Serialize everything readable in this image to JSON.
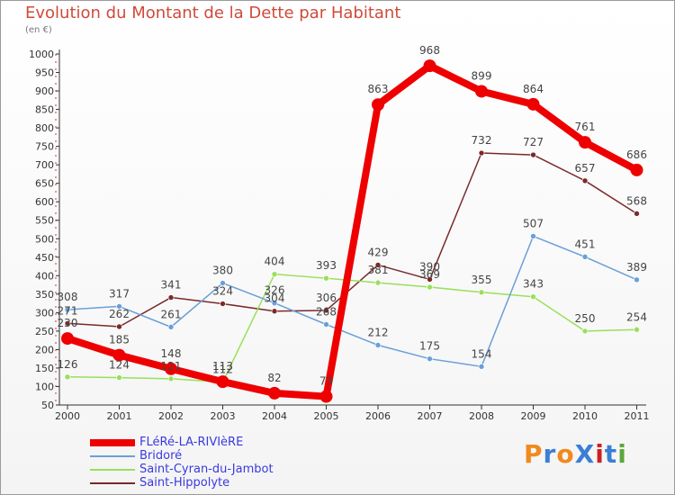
{
  "chart_data": {
    "type": "line",
    "title": "Evolution du Montant de la Dette par Habitant",
    "subtitle": "(en €)",
    "categories": [
      "2000",
      "2001",
      "2002",
      "2003",
      "2004",
      "2005",
      "2006",
      "2007",
      "2008",
      "2009",
      "2010",
      "2011"
    ],
    "yticks": [
      "50",
      "100",
      "150",
      "200",
      "250",
      "300",
      "350",
      "400",
      "450",
      "500",
      "550",
      "600",
      "650",
      "700",
      "750",
      "800",
      "850",
      "900",
      "950",
      "1000"
    ],
    "ylim": [
      50,
      1000
    ],
    "grid": false,
    "legend_position": "bottom-left",
    "series": [
      {
        "name": "FLéRé-LA-RIVIèRE",
        "color": "#ee0000",
        "width": 8,
        "values": [
          230,
          185,
          148,
          113,
          82,
          73,
          863,
          968,
          899,
          864,
          761,
          686
        ]
      },
      {
        "name": "Bridoré",
        "color": "#6a9fd8",
        "width": 1.5,
        "values": [
          308,
          317,
          261,
          380,
          326,
          268,
          212,
          175,
          154,
          507,
          451,
          389
        ]
      },
      {
        "name": "Saint-Cyran-du-Jambot",
        "color": "#99e05a",
        "width": 1.5,
        "values": [
          126,
          124,
          121,
          112,
          404,
          393,
          381,
          369,
          355,
          343,
          250,
          254
        ]
      },
      {
        "name": "Saint-Hippolyte",
        "color": "#7a2a2a",
        "width": 1.5,
        "values": [
          271,
          262,
          341,
          324,
          304,
          306,
          429,
          390,
          732,
          727,
          657,
          568
        ]
      }
    ]
  },
  "logo": {
    "text": "ProXiti",
    "letters": [
      "P",
      "r",
      "o",
      "X",
      "i",
      "t",
      "i"
    ],
    "colors": [
      "#f08a1e",
      "#3a7fd5",
      "#f08a1e",
      "#3a7fd5",
      "#cc2020",
      "#3a7fd5",
      "#5aa83a"
    ]
  }
}
